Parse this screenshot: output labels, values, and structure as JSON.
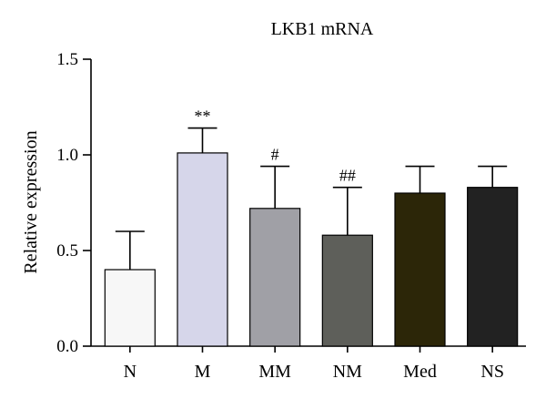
{
  "chart_data": {
    "type": "bar",
    "title": "LKB1 mRNA",
    "xlabel": "",
    "ylabel": "Relative expression",
    "ylim": [
      0,
      1.5
    ],
    "yticks": [
      "0.0",
      "0.5",
      "1.0",
      "1.5"
    ],
    "categories": [
      "N",
      "M",
      "MM",
      "NM",
      "Med",
      "NS"
    ],
    "values": [
      0.4,
      1.01,
      0.72,
      0.58,
      0.8,
      0.83
    ],
    "errors": [
      0.2,
      0.13,
      0.22,
      0.25,
      0.14,
      0.11
    ],
    "annotations": [
      "",
      "**",
      "#",
      "##",
      "",
      ""
    ],
    "colors": [
      "#f7f7f7",
      "#d6d6ea",
      "#a0a0a6",
      "#5e5f5a",
      "#2c2608",
      "#222222"
    ],
    "grid": false
  }
}
